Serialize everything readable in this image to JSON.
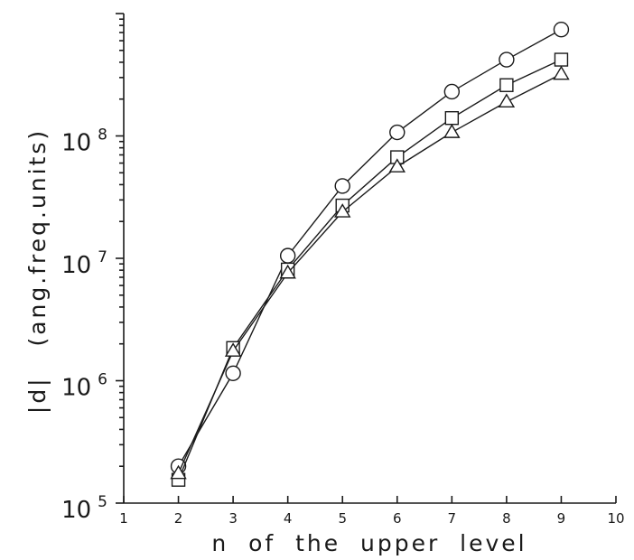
{
  "chart_data": {
    "type": "line",
    "title": "",
    "xlabel": "n  of  the  upper  level",
    "ylabel": "|d|   (ang.freq.units)",
    "x_scale": "linear",
    "y_scale": "log",
    "xlim": [
      1,
      10
    ],
    "ylim": [
      100000,
      1000000000
    ],
    "x_ticks": [
      "1",
      "2",
      "3",
      "4",
      "5",
      "6",
      "7",
      "8",
      "9",
      "10"
    ],
    "y_ticks": [
      {
        "value": 100000,
        "base": "10",
        "exp": "5"
      },
      {
        "value": 1000000,
        "base": "10",
        "exp": "6"
      },
      {
        "value": 10000000,
        "base": "10",
        "exp": "7"
      },
      {
        "value": 100000000,
        "base": "10",
        "exp": "8"
      }
    ],
    "grid": false,
    "legend": "none",
    "x": [
      2,
      3,
      4,
      5,
      6,
      7,
      8,
      9
    ],
    "series": [
      {
        "marker": "circle",
        "values": [
          200000,
          1150000,
          10500000,
          39000000,
          107000000,
          230000000,
          420000000,
          740000000
        ]
      },
      {
        "marker": "square",
        "values": [
          155000,
          1850000,
          8100000,
          27000000,
          67000000,
          140000000,
          260000000,
          420000000
        ]
      },
      {
        "marker": "triangle",
        "values": [
          175000,
          1750000,
          7600000,
          24000000,
          56000000,
          107000000,
          190000000,
          320000000
        ]
      }
    ]
  }
}
